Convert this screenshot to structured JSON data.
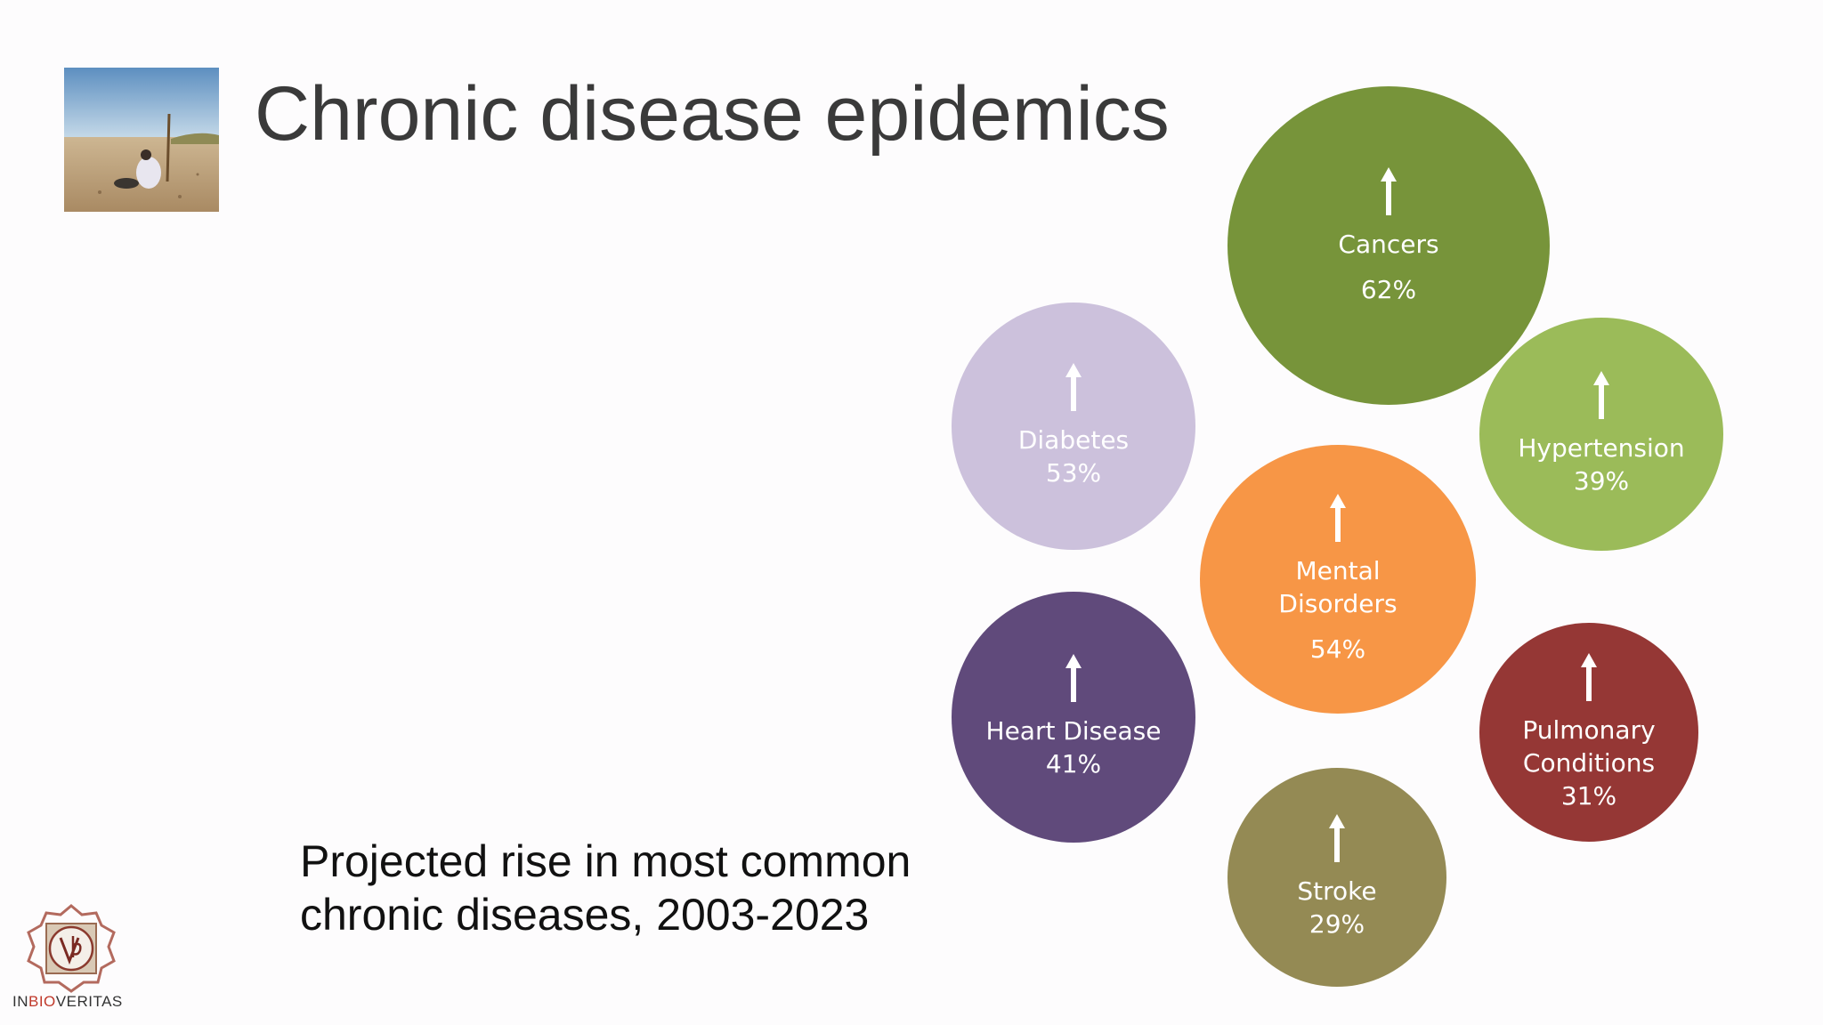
{
  "slide": {
    "title": "Chronic disease epidemics",
    "caption_line1": "Projected rise in most common",
    "caption_line2": "chronic diseases, 2003-2023",
    "logo": {
      "text_a": "IN",
      "text_b": "BIO",
      "text_c": "VERITAS"
    }
  },
  "bubbles": [
    {
      "label": "Cancers",
      "value": "62%",
      "color": "#77943a"
    },
    {
      "label": "Diabetes",
      "value": "53%",
      "color": "#ccc1dc"
    },
    {
      "label": "Hypertension",
      "value": "39%",
      "color": "#9bbb59"
    },
    {
      "label_line1": "Mental",
      "label_line2": "Disorders",
      "value": "54%",
      "color": "#f79646"
    },
    {
      "label": "Heart Disease",
      "value": "41%",
      "color": "#604a7b"
    },
    {
      "label_line1": "Pulmonary",
      "label_line2": "Conditions",
      "value": "31%",
      "color": "#953735"
    },
    {
      "label": "Stroke",
      "value": "29%",
      "color": "#948a54"
    }
  ],
  "icons": {
    "arrow": "up-arrow-icon"
  }
}
